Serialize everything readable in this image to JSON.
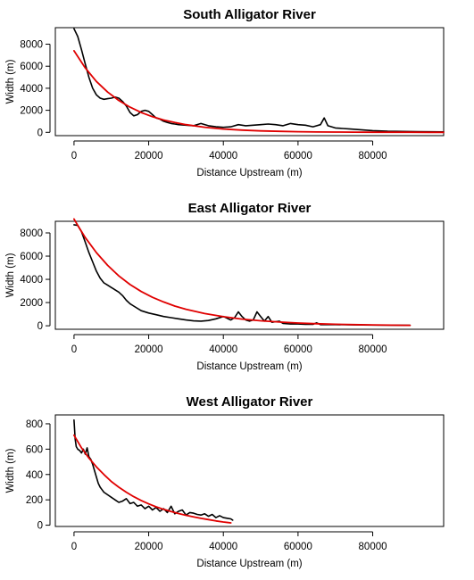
{
  "chart_data": [
    {
      "type": "line",
      "title": "South Alligator River",
      "xlabel": "Distance Upstream (m)",
      "ylabel": "Width (m)",
      "xlim": [
        -5000,
        99000
      ],
      "ylim": [
        -300,
        9500
      ],
      "xticks": [
        0,
        20000,
        40000,
        60000,
        80000
      ],
      "xtick_labels": [
        "0",
        "20000",
        "40000",
        "60000",
        "80000"
      ],
      "yticks": [
        0,
        2000,
        4000,
        6000,
        8000
      ],
      "ytick_labels": [
        "0",
        "2000",
        "4000",
        "6000",
        "8000"
      ],
      "grid": false,
      "series": [
        {
          "color": "#000000",
          "x": [
            0,
            1000,
            2000,
            3000,
            4000,
            5000,
            6000,
            7000,
            8000,
            9000,
            10000,
            11000,
            12000,
            13000,
            14000,
            15000,
            16000,
            17000,
            18000,
            19000,
            20000,
            21000,
            22000,
            23000,
            24000,
            25000,
            26000,
            27000,
            28000,
            30000,
            32000,
            34000,
            36000,
            38000,
            40000,
            42000,
            44000,
            46000,
            48000,
            50000,
            52000,
            54000,
            56000,
            58000,
            60000,
            62000,
            64000,
            66000,
            67000,
            68000,
            70000,
            72000,
            74000,
            76000,
            78000,
            80000,
            84000,
            88000,
            92000,
            96000,
            99000
          ],
          "y": [
            9400,
            8700,
            7500,
            6200,
            5000,
            4000,
            3400,
            3100,
            3000,
            3050,
            3100,
            3200,
            3100,
            2800,
            2400,
            1800,
            1500,
            1600,
            1900,
            2000,
            1900,
            1600,
            1300,
            1200,
            1000,
            900,
            800,
            750,
            700,
            650,
            600,
            800,
            600,
            500,
            450,
            500,
            700,
            600,
            650,
            700,
            750,
            700,
            600,
            800,
            700,
            650,
            500,
            700,
            1300,
            600,
            400,
            350,
            300,
            250,
            200,
            150,
            100,
            80,
            60,
            50,
            40
          ]
        },
        {
          "color": "#e00000",
          "x": [
            0,
            3000,
            6000,
            9000,
            12000,
            15000,
            18000,
            21000,
            24000,
            27000,
            30000,
            35000,
            40000,
            45000,
            50000,
            55000,
            60000,
            65000,
            70000,
            75000,
            80000,
            85000,
            90000,
            95000,
            99000
          ],
          "y": [
            7400,
            5850,
            4620,
            3650,
            2890,
            2280,
            1800,
            1420,
            1120,
            890,
            700,
            460,
            300,
            200,
            130,
            85,
            55,
            36,
            24,
            16,
            10,
            7,
            4,
            3,
            2
          ]
        }
      ]
    },
    {
      "type": "line",
      "title": "East Alligator River",
      "xlabel": "Distance Upstream (m)",
      "ylabel": "Width (m)",
      "xlim": [
        -5000,
        99000
      ],
      "ylim": [
        -300,
        9000
      ],
      "xticks": [
        0,
        20000,
        40000,
        60000,
        80000
      ],
      "xtick_labels": [
        "0",
        "20000",
        "40000",
        "60000",
        "80000"
      ],
      "yticks": [
        0,
        2000,
        4000,
        6000,
        8000
      ],
      "ytick_labels": [
        "0",
        "2000",
        "4000",
        "6000",
        "8000"
      ],
      "grid": false,
      "series": [
        {
          "color": "#000000",
          "x": [
            0,
            1000,
            2000,
            3000,
            4000,
            5000,
            6000,
            7000,
            8000,
            9000,
            10000,
            11000,
            12000,
            13000,
            14000,
            15000,
            16000,
            18000,
            20000,
            22000,
            24000,
            26000,
            28000,
            30000,
            32000,
            34000,
            36000,
            38000,
            40000,
            42000,
            43000,
            44000,
            45000,
            46000,
            47000,
            48000,
            49000,
            50000,
            51000,
            52000,
            53000,
            54000,
            55000,
            56000,
            58000,
            60000,
            62000,
            64000,
            65000,
            66000,
            68000,
            70000,
            75000,
            80000,
            85000,
            90000
          ],
          "y": [
            8700,
            8650,
            8100,
            7200,
            6300,
            5500,
            4700,
            4100,
            3700,
            3500,
            3300,
            3100,
            2900,
            2600,
            2200,
            1900,
            1700,
            1300,
            1100,
            950,
            800,
            700,
            600,
            500,
            420,
            400,
            450,
            600,
            800,
            500,
            700,
            1200,
            800,
            500,
            400,
            500,
            1200,
            800,
            400,
            800,
            300,
            350,
            400,
            200,
            150,
            150,
            120,
            120,
            250,
            100,
            100,
            100,
            80,
            60,
            50,
            40
          ]
        },
        {
          "color": "#e00000",
          "x": [
            0,
            1000,
            3000,
            6000,
            9000,
            12000,
            15000,
            18000,
            21000,
            24000,
            27000,
            30000,
            35000,
            40000,
            45000,
            50000,
            55000,
            60000,
            65000,
            70000,
            75000,
            80000,
            85000,
            90000
          ],
          "y": [
            9200,
            8650,
            7600,
            6300,
            5200,
            4300,
            3550,
            2950,
            2450,
            2050,
            1700,
            1420,
            1050,
            780,
            580,
            430,
            320,
            240,
            180,
            130,
            100,
            75,
            55,
            40
          ]
        }
      ]
    },
    {
      "type": "line",
      "title": "West Alligator River",
      "xlabel": "Distance Upstream (m)",
      "ylabel": "Width (m)",
      "xlim": [
        -5000,
        99000
      ],
      "ylim": [
        -10,
        870
      ],
      "xticks": [
        0,
        20000,
        40000,
        60000,
        80000
      ],
      "xtick_labels": [
        "0",
        "20000",
        "40000",
        "60000",
        "80000"
      ],
      "yticks": [
        0,
        200,
        400,
        600,
        800
      ],
      "ytick_labels": [
        "0",
        "200",
        "400",
        "600",
        "800"
      ],
      "grid": false,
      "series": [
        {
          "color": "#000000",
          "x": [
            0,
            300,
            600,
            1000,
            1500,
            2000,
            2500,
            3000,
            3500,
            4000,
            4500,
            5000,
            5500,
            6000,
            6500,
            7000,
            7500,
            8000,
            9000,
            10000,
            11000,
            12000,
            13000,
            14000,
            15000,
            16000,
            17000,
            18000,
            19000,
            20000,
            21000,
            22000,
            23000,
            24000,
            25000,
            26000,
            27000,
            28000,
            29000,
            30000,
            31000,
            32000,
            33000,
            34000,
            35000,
            36000,
            37000,
            38000,
            39000,
            40000,
            41000,
            42000,
            42500
          ],
          "y": [
            830,
            680,
            620,
            600,
            590,
            570,
            600,
            560,
            610,
            540,
            520,
            480,
            430,
            380,
            330,
            300,
            280,
            260,
            240,
            220,
            200,
            180,
            190,
            210,
            170,
            180,
            150,
            160,
            130,
            150,
            120,
            140,
            110,
            130,
            100,
            150,
            90,
            110,
            120,
            80,
            100,
            95,
            85,
            80,
            90,
            70,
            85,
            60,
            75,
            60,
            55,
            50,
            40
          ]
        },
        {
          "color": "#e00000",
          "x": [
            0,
            2000,
            4000,
            6000,
            8000,
            10000,
            12000,
            14000,
            16000,
            18000,
            20000,
            22000,
            24000,
            26000,
            28000,
            30000,
            32000,
            34000,
            36000,
            38000,
            40000,
            42000
          ],
          "y": [
            710,
            610,
            530,
            460,
            400,
            345,
            300,
            260,
            225,
            195,
            168,
            145,
            125,
            108,
            92,
            78,
            65,
            54,
            44,
            34,
            25,
            18
          ]
        }
      ]
    }
  ]
}
